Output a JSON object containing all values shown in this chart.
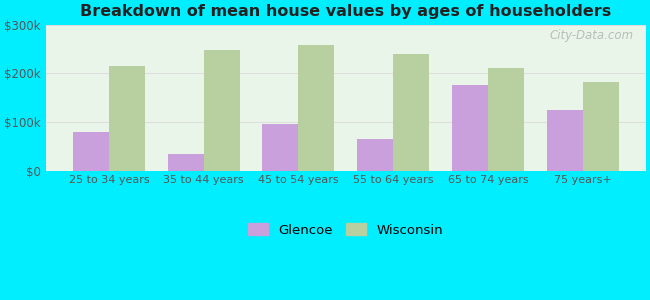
{
  "title": "Breakdown of mean house values by ages of householders",
  "categories": [
    "25 to 34 years",
    "35 to 44 years",
    "45 to 54 years",
    "55 to 64 years",
    "65 to 74 years",
    "75 years+"
  ],
  "glencoe_values": [
    80000,
    35000,
    95000,
    65000,
    175000,
    125000
  ],
  "wisconsin_values": [
    215000,
    248000,
    258000,
    240000,
    210000,
    182000
  ],
  "glencoe_color": "#c9a0dc",
  "wisconsin_color": "#b8cfa0",
  "background_color": "#00eeff",
  "plot_bg_color_topleft": "#e8f5e9",
  "plot_bg_color_bottomright": "#f5fff5",
  "ylim": [
    0,
    300000
  ],
  "yticks": [
    0,
    100000,
    200000,
    300000
  ],
  "ytick_labels": [
    "$0",
    "$100k",
    "$200k",
    "$300k"
  ],
  "title_fontsize": 12,
  "legend_labels": [
    "Glencoe",
    "Wisconsin"
  ],
  "bar_width": 0.38,
  "watermark_text": "City-Data.com"
}
